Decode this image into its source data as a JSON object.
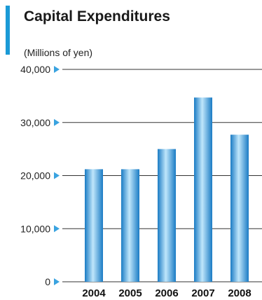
{
  "chart_data": {
    "type": "bar",
    "title": "Capital Expenditures",
    "unit_label": "(Millions of yen)",
    "categories": [
      "2004",
      "2005",
      "2006",
      "2007",
      "2008"
    ],
    "values": [
      21200,
      21200,
      25000,
      34700,
      27700
    ],
    "ylim": [
      0,
      40000
    ],
    "yticks": [
      0,
      10000,
      20000,
      30000,
      40000
    ],
    "ytick_labels": [
      "0",
      "10,000",
      "20,000",
      "30,000",
      "40,000"
    ],
    "grid": true,
    "colors": {
      "title_accent": "#1a9ad6",
      "bar_edge": "#1a7bc4",
      "bar_center": "#bfe6fb",
      "arrow": "#3aa3e0",
      "grid": "#333333"
    }
  }
}
